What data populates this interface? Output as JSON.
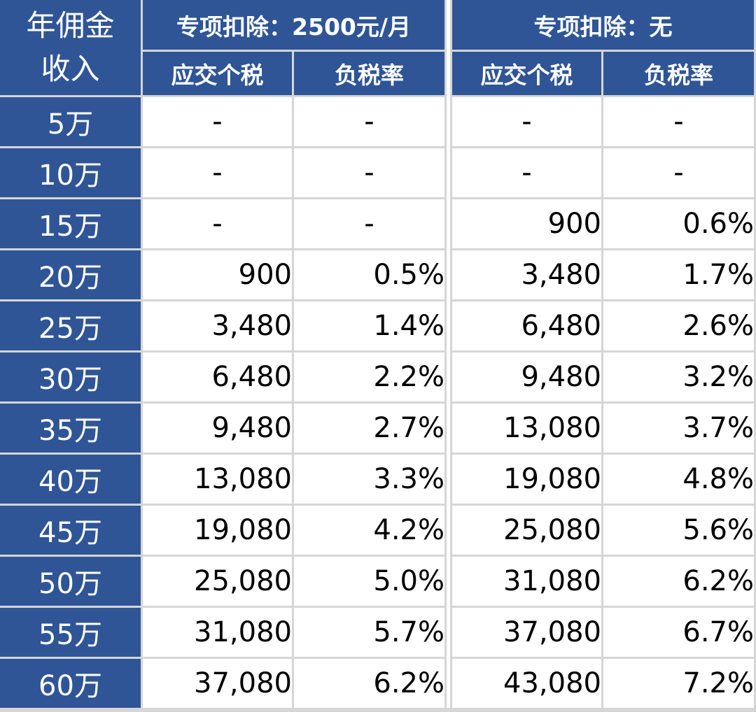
{
  "table": {
    "corner_label": [
      "年佣金",
      "收入"
    ],
    "groups": [
      {
        "title": "专项扣除：2500元/月",
        "sub_headers": [
          "应交个税",
          "负税率"
        ]
      },
      {
        "title": "专项扣除：无",
        "sub_headers": [
          "应交个税",
          "负税率"
        ]
      }
    ],
    "rows": [
      {
        "income": "5万",
        "g1_tax": "-",
        "g1_rate": "-",
        "g2_tax": "-",
        "g2_rate": "-"
      },
      {
        "income": "10万",
        "g1_tax": "-",
        "g1_rate": "-",
        "g2_tax": "-",
        "g2_rate": "-"
      },
      {
        "income": "15万",
        "g1_tax": "-",
        "g1_rate": "-",
        "g2_tax": "900",
        "g2_rate": "0.6%"
      },
      {
        "income": "20万",
        "g1_tax": "900",
        "g1_rate": "0.5%",
        "g2_tax": "3,480",
        "g2_rate": "1.7%"
      },
      {
        "income": "25万",
        "g1_tax": "3,480",
        "g1_rate": "1.4%",
        "g2_tax": "6,480",
        "g2_rate": "2.6%"
      },
      {
        "income": "30万",
        "g1_tax": "6,480",
        "g1_rate": "2.2%",
        "g2_tax": "9,480",
        "g2_rate": "3.2%"
      },
      {
        "income": "35万",
        "g1_tax": "9,480",
        "g1_rate": "2.7%",
        "g2_tax": "13,080",
        "g2_rate": "3.7%"
      },
      {
        "income": "40万",
        "g1_tax": "13,080",
        "g1_rate": "3.3%",
        "g2_tax": "19,080",
        "g2_rate": "4.8%"
      },
      {
        "income": "45万",
        "g1_tax": "19,080",
        "g1_rate": "4.2%",
        "g2_tax": "25,080",
        "g2_rate": "5.6%"
      },
      {
        "income": "50万",
        "g1_tax": "25,080",
        "g1_rate": "5.0%",
        "g2_tax": "31,080",
        "g2_rate": "6.2%"
      },
      {
        "income": "55万",
        "g1_tax": "31,080",
        "g1_rate": "5.7%",
        "g2_tax": "37,080",
        "g2_rate": "6.7%"
      },
      {
        "income": "60万",
        "g1_tax": "37,080",
        "g1_rate": "6.2%",
        "g2_tax": "43,080",
        "g2_rate": "7.2%"
      }
    ]
  },
  "colors": {
    "header_bg": "#2f5597",
    "header_text": "#ffffff",
    "cell_bg": "#ffffff",
    "grid": "#d6d6d6"
  }
}
